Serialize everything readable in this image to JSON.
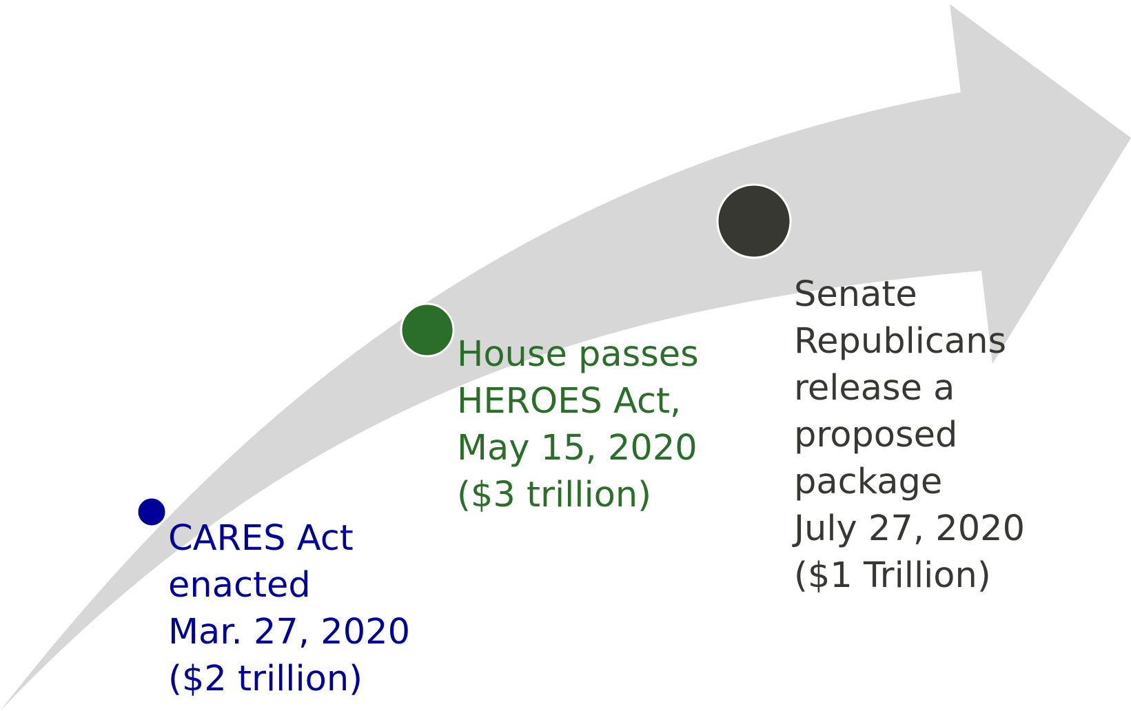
{
  "arrow": {
    "color": "#d7d7d7"
  },
  "milestones": [
    {
      "color": "#000099",
      "lines": [
        "CARES Act",
        "enacted",
        "Mar. 27, 2020",
        "($2 trillion)"
      ]
    },
    {
      "color": "#2a6e2a",
      "lines": [
        "House passes",
        "HEROES Act,",
        "May 15, 2020",
        "($3 trillion)"
      ]
    },
    {
      "color": "#383833",
      "lines": [
        "Senate",
        "Republicans",
        "release a",
        "proposed",
        "package",
        "July 27, 2020",
        "($1 Trillion)"
      ]
    }
  ]
}
